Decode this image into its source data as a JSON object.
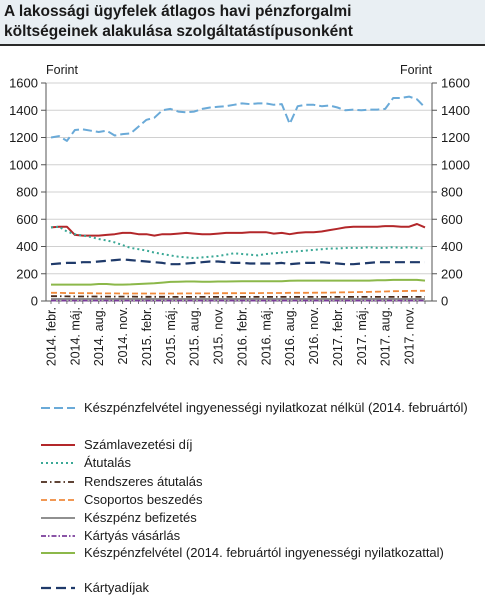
{
  "title": {
    "line1": "A lakossági ügyfelek átlagos havi pénzforgalmi",
    "line2": "költségeinek alakulása szolgáltatástípusonként"
  },
  "chart_data": {
    "type": "line",
    "ylabel_left": "Forint",
    "ylabel_right": "Forint",
    "ylim": [
      0,
      1600
    ],
    "yticks": [
      0,
      200,
      400,
      600,
      800,
      1000,
      1200,
      1400,
      1600
    ],
    "grid": true,
    "legend_position": "bottom",
    "x_tick_labels": [
      "2014. febr.",
      "2014. máj.",
      "2014. aug.",
      "2014. nov.",
      "2015. febr.",
      "2015. máj.",
      "2015. aug.",
      "2015. nov.",
      "2016. febr.",
      "2016. máj.",
      "2016. aug.",
      "2016. nov.",
      "2017. febr.",
      "2017. máj.",
      "2017. aug.",
      "2017. nov."
    ],
    "x": [
      "2014. febr.",
      "2014. márc.",
      "2014. ápr.",
      "2014. máj.",
      "2014. jún.",
      "2014. júl.",
      "2014. aug.",
      "2014. szept.",
      "2014. okt.",
      "2014. nov.",
      "2014. dec.",
      "2015. jan.",
      "2015. febr.",
      "2015. márc.",
      "2015. ápr.",
      "2015. máj.",
      "2015. jún.",
      "2015. júl.",
      "2015. aug.",
      "2015. szept.",
      "2015. okt.",
      "2015. nov.",
      "2015. dec.",
      "2016. jan.",
      "2016. febr.",
      "2016. márc.",
      "2016. ápr.",
      "2016. máj.",
      "2016. jún.",
      "2016. júl.",
      "2016. aug.",
      "2016. szept.",
      "2016. okt.",
      "2016. nov.",
      "2016. dec.",
      "2017. jan.",
      "2017. febr.",
      "2017. márc.",
      "2017. ápr.",
      "2017. máj.",
      "2017. jún.",
      "2017. júl.",
      "2017. aug.",
      "2017. szept.",
      "2017. okt.",
      "2017. nov.",
      "2017. dec.",
      "2018. jan."
    ],
    "series": [
      {
        "name": "Készpénzfelvétel ingyenességi nyilatkozat nélkül (2014. februártól)",
        "color": "#6aaad8",
        "dash": "9,4",
        "width": 2,
        "values": [
          1200,
          1210,
          1175,
          1255,
          1260,
          1250,
          1240,
          1250,
          1215,
          1225,
          1230,
          1280,
          1330,
          1345,
          1400,
          1410,
          1390,
          1385,
          1390,
          1410,
          1420,
          1425,
          1430,
          1440,
          1450,
          1445,
          1450,
          1450,
          1440,
          1445,
          1300,
          1430,
          1440,
          1440,
          1430,
          1435,
          1420,
          1400,
          1405,
          1400,
          1405,
          1405,
          1410,
          1490,
          1490,
          1500,
          1480,
          1420
        ]
      },
      {
        "name": "Számlavezetési díj",
        "color": "#b3272a",
        "dash": "",
        "width": 2,
        "values": [
          540,
          545,
          545,
          485,
          480,
          480,
          480,
          485,
          490,
          500,
          500,
          490,
          490,
          480,
          490,
          490,
          495,
          500,
          495,
          490,
          490,
          495,
          500,
          500,
          500,
          505,
          505,
          505,
          495,
          500,
          490,
          500,
          505,
          505,
          510,
          520,
          530,
          540,
          545,
          545,
          545,
          545,
          550,
          550,
          545,
          545,
          565,
          540
        ]
      },
      {
        "name": "Átutalás",
        "color": "#3aa896",
        "dash": "2,3",
        "width": 2,
        "values": [
          540,
          545,
          510,
          490,
          480,
          470,
          455,
          445,
          430,
          410,
          390,
          380,
          370,
          355,
          345,
          335,
          325,
          320,
          315,
          320,
          325,
          330,
          340,
          350,
          345,
          340,
          335,
          345,
          350,
          355,
          360,
          365,
          370,
          375,
          380,
          385,
          385,
          390,
          390,
          390,
          395,
          390,
          390,
          395,
          390,
          395,
          390,
          385
        ]
      },
      {
        "name": "Rendszeres átutalás",
        "color": "#4a2a1a",
        "dash": "6,3,1.5,3",
        "width": 1.8,
        "values": [
          35,
          35,
          34,
          33,
          33,
          33,
          32,
          32,
          32,
          32,
          32,
          31,
          31,
          31,
          31,
          30,
          30,
          30,
          30,
          30,
          30,
          30,
          30,
          30,
          30,
          30,
          30,
          30,
          30,
          30,
          30,
          30,
          30,
          30,
          30,
          30,
          30,
          30,
          30,
          30,
          30,
          30,
          30,
          30,
          30,
          30,
          30,
          30
        ]
      },
      {
        "name": "Csoportos beszedés",
        "color": "#ef8a3c",
        "dash": "6,3",
        "width": 1.8,
        "values": [
          60,
          60,
          58,
          58,
          57,
          57,
          56,
          56,
          56,
          55,
          55,
          55,
          55,
          55,
          55,
          55,
          55,
          56,
          56,
          56,
          56,
          57,
          57,
          57,
          58,
          58,
          58,
          59,
          59,
          59,
          60,
          60,
          60,
          61,
          61,
          62,
          63,
          64,
          65,
          66,
          67,
          68,
          70,
          72,
          73,
          74,
          75,
          75
        ]
      },
      {
        "name": "Készpénz befizetés",
        "color": "#909090",
        "dash": "",
        "width": 2,
        "values": [
          15,
          15,
          15,
          15,
          15,
          15,
          15,
          15,
          15,
          15,
          15,
          15,
          15,
          15,
          15,
          15,
          15,
          15,
          15,
          15,
          15,
          15,
          15,
          15,
          15,
          15,
          15,
          15,
          15,
          15,
          15,
          15,
          15,
          15,
          15,
          15,
          15,
          15,
          15,
          15,
          15,
          15,
          15,
          15,
          15,
          15,
          15,
          15
        ]
      },
      {
        "name": "Kártyás vásárlás",
        "color": "#7a3c9a",
        "dash": "5,2,1.5,2",
        "width": 1.8,
        "values": [
          3,
          3,
          3,
          3,
          3,
          3,
          3,
          3,
          3,
          3,
          3,
          3,
          3,
          3,
          3,
          3,
          3,
          3,
          3,
          3,
          3,
          3,
          3,
          3,
          3,
          3,
          3,
          3,
          3,
          3,
          3,
          3,
          3,
          3,
          3,
          3,
          3,
          3,
          3,
          3,
          3,
          3,
          3,
          3,
          3,
          3,
          3,
          3
        ]
      },
      {
        "name": "Készpénzfelvétel (2014. februártól ingyenességi nyilatkozattal)",
        "color": "#8cb84a",
        "dash": "",
        "width": 2,
        "values": [
          120,
          120,
          120,
          120,
          120,
          120,
          125,
          125,
          120,
          120,
          122,
          125,
          128,
          130,
          135,
          140,
          142,
          143,
          143,
          142,
          142,
          143,
          143,
          144,
          145,
          145,
          145,
          145,
          145,
          145,
          148,
          150,
          150,
          150,
          150,
          150,
          150,
          150,
          150,
          150,
          150,
          152,
          153,
          155,
          155,
          155,
          155,
          150
        ]
      },
      {
        "name": "Kártyadíjak",
        "color": "#1f3a6a",
        "dash": "10,5",
        "width": 2.2,
        "values": [
          270,
          275,
          280,
          280,
          285,
          285,
          290,
          295,
          300,
          305,
          300,
          295,
          290,
          285,
          280,
          270,
          270,
          275,
          280,
          285,
          290,
          290,
          285,
          280,
          280,
          275,
          275,
          275,
          275,
          280,
          270,
          275,
          280,
          280,
          285,
          280,
          275,
          270,
          270,
          275,
          280,
          285,
          285,
          285,
          285,
          285,
          285,
          285
        ]
      }
    ]
  }
}
